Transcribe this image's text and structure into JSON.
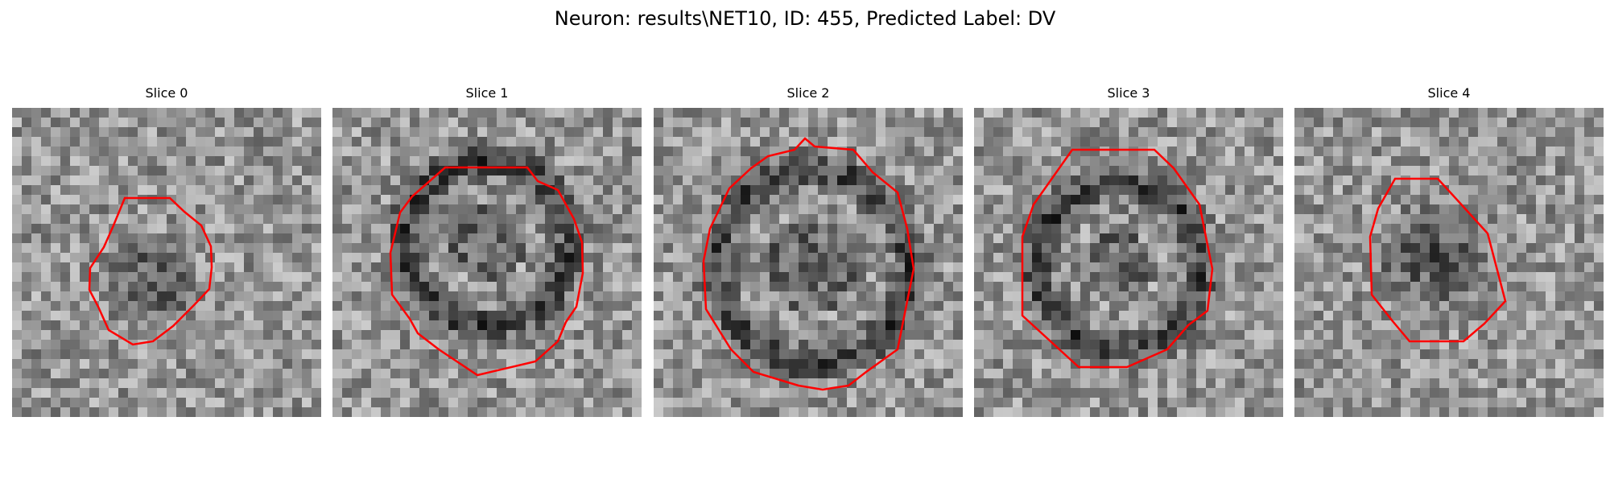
{
  "figure": {
    "title": "Neuron: results\\NET10, ID: 455, Predicted Label: DV"
  },
  "contour_color": "#ff0000",
  "colormap": "gray",
  "panels": [
    {
      "title": "Slice 0"
    },
    {
      "title": "Slice 1"
    },
    {
      "title": "Slice 2"
    },
    {
      "title": "Slice 3"
    },
    {
      "title": "Slice 4"
    }
  ]
}
